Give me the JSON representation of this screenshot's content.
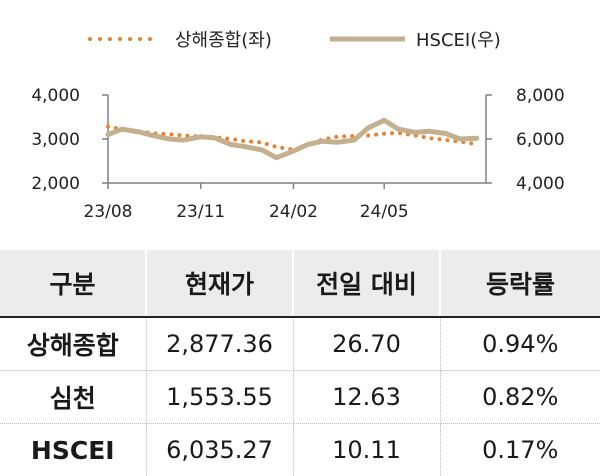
{
  "chart_data": {
    "type": "line",
    "x_ticks": [
      "23/08",
      "23/11",
      "24/02",
      "24/05"
    ],
    "legend_position": "top",
    "y_left": {
      "ticks": [
        "2,000",
        "3,000",
        "4,000"
      ],
      "range": [
        2000,
        4000
      ]
    },
    "y_right": {
      "ticks": [
        "4,000",
        "6,000",
        "8,000"
      ],
      "range": [
        4000,
        8000
      ]
    },
    "series": [
      {
        "name": "상해종합(좌)",
        "axis": "left",
        "style": "dotted",
        "color": "#e8822e",
        "x": [
          "2023-08-01",
          "2023-08-15",
          "2023-09-01",
          "2023-09-15",
          "2023-10-01",
          "2023-10-15",
          "2023-11-01",
          "2023-11-15",
          "2023-12-01",
          "2023-12-15",
          "2024-01-01",
          "2024-01-15",
          "2024-02-01",
          "2024-02-15",
          "2024-03-01",
          "2024-03-15",
          "2024-04-01",
          "2024-04-15",
          "2024-05-01",
          "2024-05-15",
          "2024-06-01",
          "2024-06-15",
          "2024-07-01",
          "2024-07-15",
          "2024-08-01"
        ],
        "values": [
          3280,
          3220,
          3170,
          3130,
          3110,
          3080,
          3060,
          3040,
          3000,
          2950,
          2920,
          2820,
          2760,
          2860,
          2990,
          3050,
          3070,
          3080,
          3120,
          3140,
          3080,
          3020,
          2980,
          2940,
          2880
        ]
      },
      {
        "name": "HSCEI(우)",
        "axis": "right",
        "style": "solid",
        "color": "#c4b08e",
        "x": [
          "2023-08-01",
          "2023-08-15",
          "2023-09-01",
          "2023-09-15",
          "2023-10-01",
          "2023-10-15",
          "2023-11-01",
          "2023-11-15",
          "2023-12-01",
          "2023-12-15",
          "2024-01-01",
          "2024-01-15",
          "2024-02-01",
          "2024-02-15",
          "2024-03-01",
          "2024-03-15",
          "2024-04-01",
          "2024-04-15",
          "2024-05-01",
          "2024-05-15",
          "2024-06-01",
          "2024-06-15",
          "2024-07-01",
          "2024-07-15",
          "2024-08-01"
        ],
        "values": [
          6200,
          6450,
          6320,
          6150,
          6000,
          5950,
          6100,
          6050,
          5750,
          5650,
          5500,
          5150,
          5450,
          5750,
          5900,
          5850,
          5950,
          6500,
          6850,
          6450,
          6300,
          6350,
          6250,
          6000,
          6035
        ]
      }
    ]
  },
  "table": {
    "headers": [
      "구분",
      "현재가",
      "전일 대비",
      "등락률"
    ],
    "rows": [
      [
        "상해종합",
        "2,877.36",
        "26.70",
        "0.94%"
      ],
      [
        "심천",
        "1,553.55",
        "12.63",
        "0.82%"
      ],
      [
        "HSCEI",
        "6,035.27",
        "10.11",
        "0.17%"
      ]
    ]
  },
  "colors": {
    "axis": "#808080",
    "header_bg": "#ececec"
  }
}
